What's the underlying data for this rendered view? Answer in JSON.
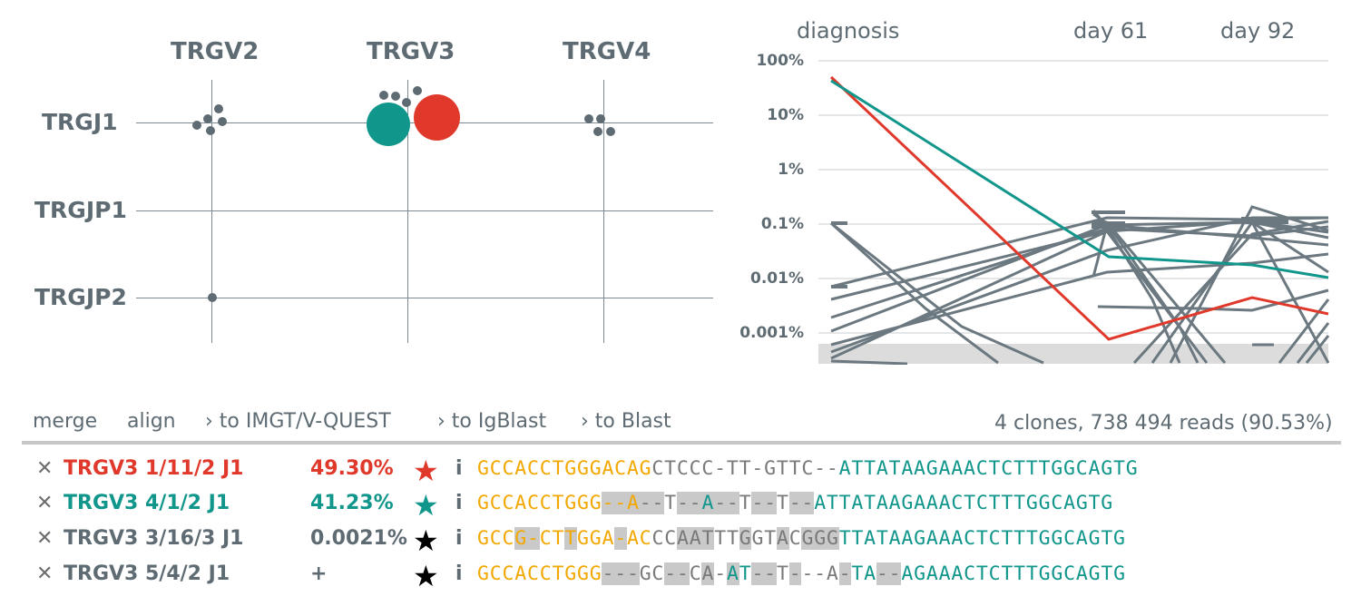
{
  "grid": {
    "columns": [
      "TRGV2",
      "TRGV3",
      "TRGV4"
    ],
    "rows": [
      "TRGJ1",
      "TRGJP1",
      "TRGJP2"
    ]
  },
  "graph": {
    "time_labels": [
      "diagnosis",
      "day 61",
      "day 92"
    ],
    "y_ticks": [
      "100%",
      "10%",
      "1%",
      "0.1%",
      "0.01%",
      "0.001%"
    ]
  },
  "toolbar": {
    "merge": "merge",
    "align": "align",
    "imgt": "› to IMGT/V-QUEST",
    "igblast": "› to IgBlast",
    "blast": "› to Blast",
    "summary": "4 clones, 738 494 reads (90.53%)"
  },
  "clones": [
    {
      "name": "TRGV3 1/11/2 J1",
      "percent": "49.30%",
      "color": "#e0392b",
      "star_color": "#e0392b",
      "info": "i"
    },
    {
      "name": "TRGV3 4/1/2 J1",
      "percent": "41.23%",
      "color": "#11968c",
      "star_color": "#11968c",
      "info": "i"
    },
    {
      "name": "TRGV3 3/16/3 J1",
      "percent": "0.0021%",
      "color": "#5e6b73",
      "star_color": "#000000",
      "info": "i"
    },
    {
      "name": "TRGV3 5/4/2 J1",
      "percent": "+",
      "color": "#5e6b73",
      "star_color": "#000000",
      "info": "i"
    }
  ],
  "sequences": [
    "GCCACCTGGGACAGCTCCC-TT-GTTC--ATTATAAGAAACTCTTTGGCAGTG",
    "GCCACCTGGG--A--T--A--T--T--ATTATAAGAAACTCTTTGGCAGTG",
    "GCCG-CTTGGA-ACCCAATTTGGTACGGGTTATAAGAAACTCTTTGGCAGTG",
    "GCCACCTGGG---GC--CA-AT--T---A-TA--AGAAACTCTTTGGCAGTG"
  ],
  "colors": {
    "accent_red": "#e0392b",
    "accent_teal": "#11968c",
    "neutral": "#5e6b73",
    "v_gene": "#f2a800"
  }
}
